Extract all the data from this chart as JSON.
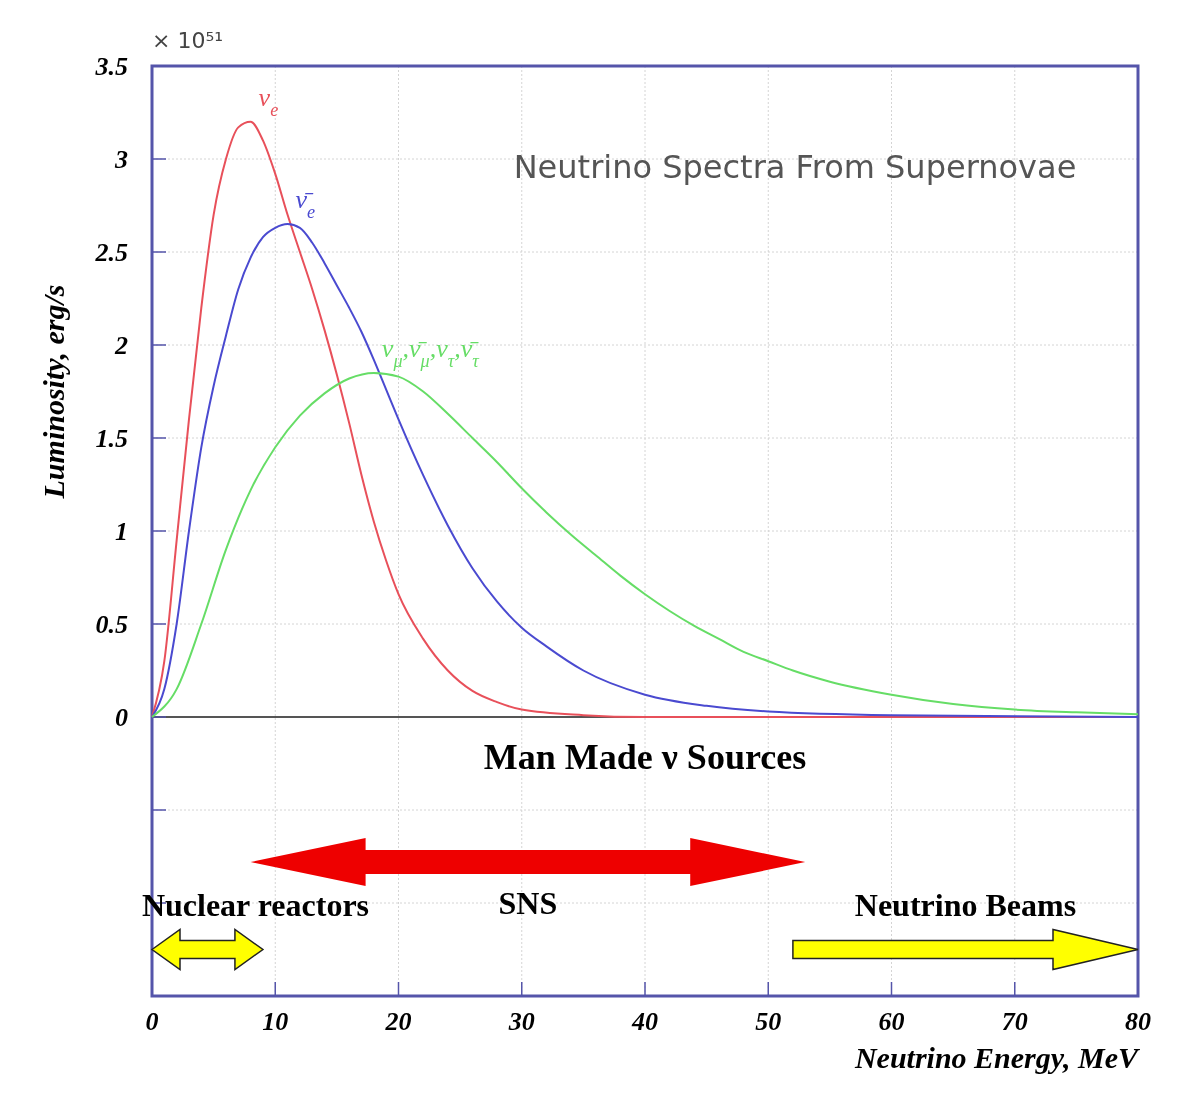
{
  "chart_data": {
    "type": "line",
    "title": "Neutrino Spectra From Supernovae",
    "xlabel": "Neutrino Energy, MeV",
    "ylabel": "Luminosity, erg/s",
    "annotations": [
      "× 10⁵¹",
      "Man Made ν Sources",
      "Nuclear reactors",
      "SNS",
      "Neutrino Beams"
    ],
    "xlim": [
      0,
      80
    ],
    "xticks": [
      0,
      10,
      20,
      30,
      40,
      50,
      60,
      70,
      80
    ],
    "ylim": [
      -1.5,
      3.5
    ],
    "yticks": [
      {
        "value": -1,
        "label": null
      },
      {
        "value": -0.5,
        "label": null
      },
      0,
      0.5,
      1,
      1.5,
      2,
      2.5,
      3,
      3.5
    ],
    "grid": true,
    "marker": "none",
    "line_style": "solid",
    "series": [
      {
        "name": "ν$_{e}$",
        "color": "#e8505a",
        "x": [
          0,
          1,
          2,
          3,
          4,
          5,
          6,
          7,
          8,
          9,
          10,
          11,
          12,
          13,
          14,
          15,
          16,
          17,
          18,
          19,
          20,
          22,
          24,
          26,
          28,
          30,
          35,
          40,
          50,
          80
        ],
        "values": [
          0,
          0.3,
          0.95,
          1.6,
          2.2,
          2.7,
          3.0,
          3.17,
          3.2,
          3.1,
          2.92,
          2.7,
          2.5,
          2.3,
          2.08,
          1.84,
          1.58,
          1.3,
          1.05,
          0.84,
          0.66,
          0.42,
          0.25,
          0.14,
          0.08,
          0.04,
          0.01,
          0,
          0,
          0
        ]
      },
      {
        "name": "ν̄$_{e}$",
        "color": "#4a4ad0",
        "x": [
          0,
          1,
          2,
          3,
          4,
          5,
          6,
          7,
          8,
          9,
          10,
          11,
          12,
          13,
          14,
          15,
          16,
          17,
          18,
          19,
          20,
          22,
          24,
          26,
          28,
          30,
          32,
          35,
          40,
          45,
          50,
          60,
          80
        ],
        "values": [
          0,
          0.15,
          0.5,
          1.0,
          1.45,
          1.78,
          2.05,
          2.3,
          2.47,
          2.58,
          2.63,
          2.65,
          2.63,
          2.55,
          2.44,
          2.32,
          2.2,
          2.07,
          1.92,
          1.76,
          1.6,
          1.3,
          1.03,
          0.8,
          0.62,
          0.48,
          0.38,
          0.25,
          0.12,
          0.06,
          0.03,
          0.01,
          0
        ]
      },
      {
        "name": "ν$_{μ}$,ν̄$_{μ}$,ν$_{τ}$,ν̄$_{τ}$",
        "color": "#66dd66",
        "x": [
          0,
          2,
          4,
          6,
          8,
          10,
          12,
          14,
          16,
          18,
          20,
          22,
          24,
          26,
          28,
          30,
          32,
          34,
          36,
          38,
          40,
          42,
          44,
          46,
          48,
          50,
          52,
          55,
          60,
          65,
          70,
          75,
          80
        ],
        "values": [
          0,
          0.15,
          0.5,
          0.9,
          1.22,
          1.45,
          1.62,
          1.74,
          1.82,
          1.85,
          1.83,
          1.75,
          1.63,
          1.5,
          1.37,
          1.23,
          1.1,
          0.98,
          0.87,
          0.76,
          0.66,
          0.57,
          0.49,
          0.42,
          0.35,
          0.3,
          0.25,
          0.19,
          0.12,
          0.07,
          0.04,
          0.025,
          0.015
        ]
      }
    ]
  }
}
